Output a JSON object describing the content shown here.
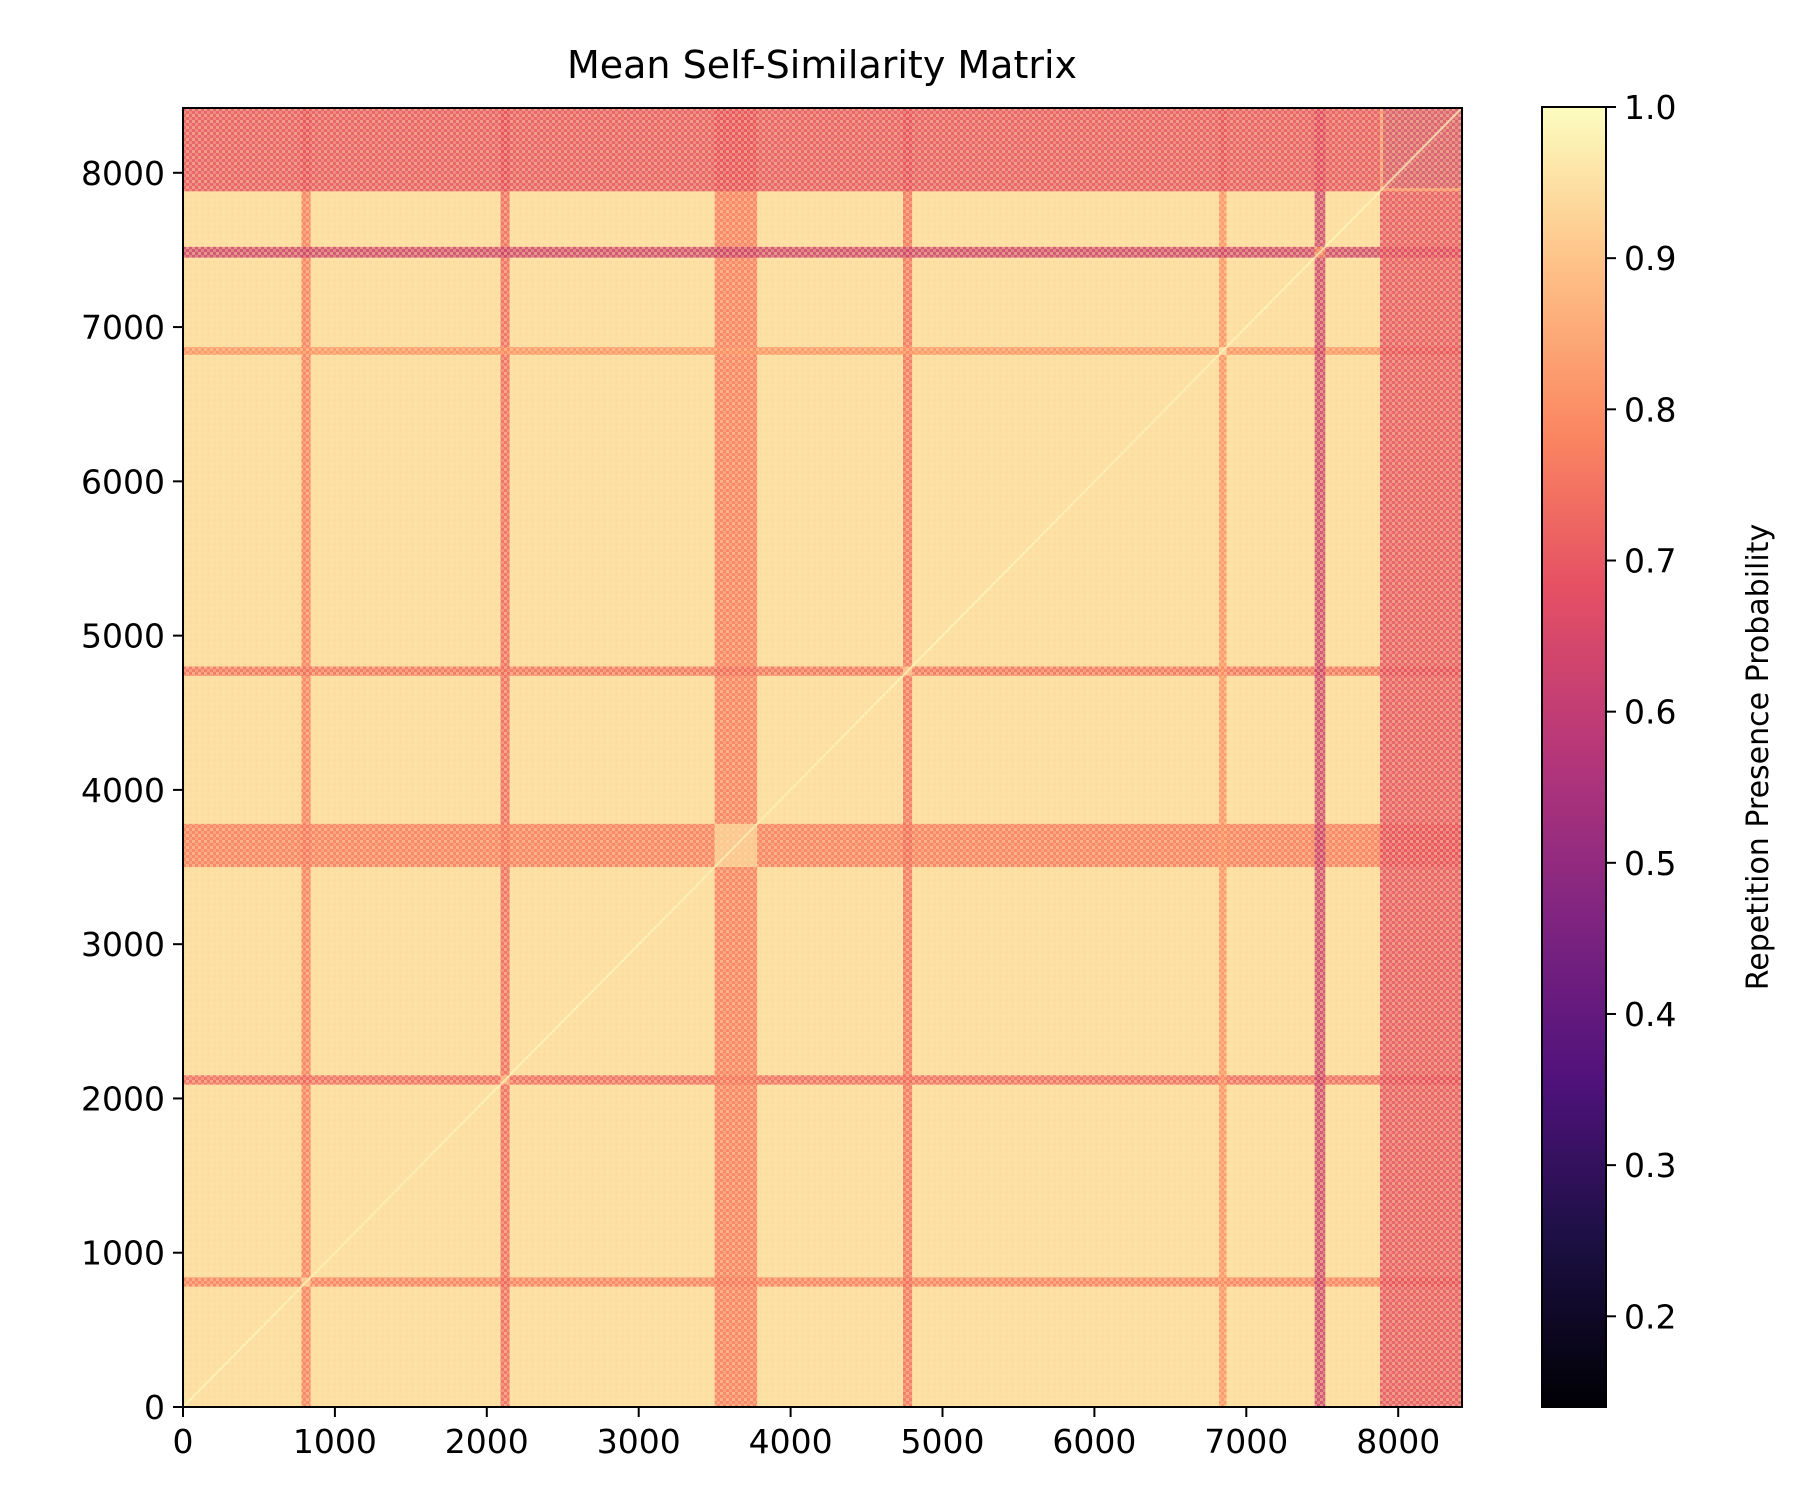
{
  "chart_data": {
    "type": "heatmap",
    "title": "Mean Self-Similarity Matrix",
    "xlabel": "",
    "ylabel": "",
    "xlim": [
      0,
      8420
    ],
    "ylim": [
      0,
      8420
    ],
    "x_ticks": [
      0,
      1000,
      2000,
      3000,
      4000,
      5000,
      6000,
      7000,
      8000
    ],
    "y_ticks": [
      0,
      1000,
      2000,
      3000,
      4000,
      5000,
      6000,
      7000,
      8000
    ],
    "colorbar": {
      "label": "Repetition Presence Probability",
      "colormap": "magma",
      "range": [
        0.14,
        1.0
      ],
      "ticks": [
        "0.2",
        "0.3",
        "0.4",
        "0.5",
        "0.6",
        "0.7",
        "0.8",
        "0.9",
        "1.0"
      ]
    },
    "background_value": 0.95,
    "bands": [
      {
        "start": 780,
        "end": 840,
        "value": 0.76
      },
      {
        "start": 2090,
        "end": 2150,
        "value": 0.72
      },
      {
        "start": 3500,
        "end": 3780,
        "value": 0.76
      },
      {
        "start": 4740,
        "end": 4800,
        "value": 0.74
      },
      {
        "start": 6820,
        "end": 6870,
        "value": 0.8
      },
      {
        "start": 7450,
        "end": 7520,
        "value": 0.62
      },
      {
        "start": 7880,
        "end": 8420,
        "value": 0.68
      }
    ],
    "block_regions": [
      {
        "start": 7900,
        "end": 8420,
        "value": 0.6
      }
    ],
    "grid": false
  }
}
